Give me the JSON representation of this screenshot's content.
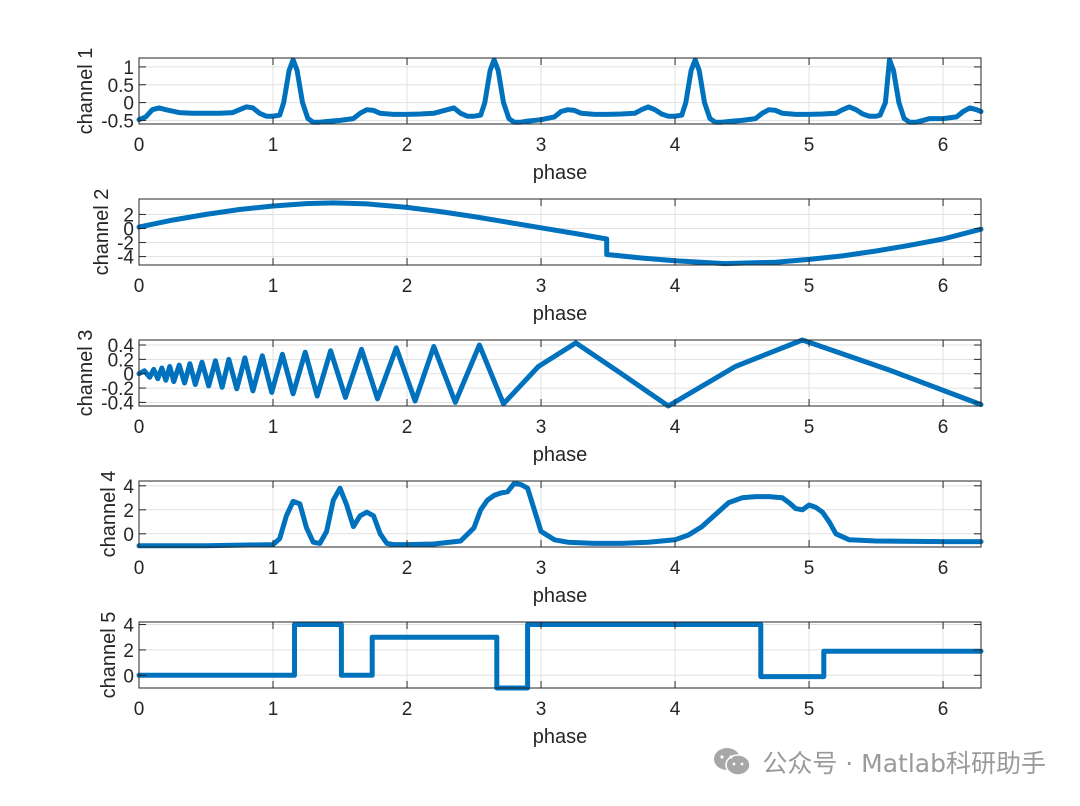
{
  "chart_data": [
    {
      "type": "line",
      "xlabel": "phase",
      "ylabel": "channel 1",
      "xlim": [
        0,
        6.283
      ],
      "ylim": [
        -0.6,
        1.25
      ],
      "xticks": [
        "0",
        "1",
        "2",
        "3",
        "4",
        "5",
        "6"
      ],
      "yticks": [
        {
          "value": 1,
          "label": "1"
        },
        {
          "value": 0.5,
          "label": "0.5"
        },
        {
          "value": 0,
          "label": "0"
        },
        {
          "value": -0.5,
          "label": "-0.5"
        }
      ],
      "grid": true,
      "color": "#0072BD",
      "series": [
        {
          "x": [
            0,
            0.05,
            0.1,
            0.15,
            0.2,
            0.3,
            0.4,
            0.5,
            0.6,
            0.7,
            0.75,
            0.8,
            0.85,
            0.9,
            0.95,
            1.0,
            1.05,
            1.08,
            1.12,
            1.15,
            1.18,
            1.22,
            1.26,
            1.3,
            1.35,
            1.4,
            1.5,
            1.6,
            1.65,
            1.7,
            1.75,
            1.8,
            1.9,
            2.0,
            2.1,
            2.2,
            2.3,
            2.35,
            2.4,
            2.45,
            2.5,
            2.55,
            2.58,
            2.62,
            2.65,
            2.68,
            2.72,
            2.76,
            2.8,
            2.85,
            2.9,
            3.0,
            3.1,
            3.15,
            3.2,
            3.25,
            3.3,
            3.4,
            3.5,
            3.6,
            3.7,
            3.75,
            3.8,
            3.85,
            3.9,
            3.95,
            4.0,
            4.05,
            4.08,
            4.12,
            4.15,
            4.18,
            4.22,
            4.26,
            4.3,
            4.35,
            4.4,
            4.5,
            4.6,
            4.65,
            4.7,
            4.75,
            4.8,
            4.9,
            5.0,
            5.1,
            5.2,
            5.25,
            5.3,
            5.35,
            5.4,
            5.45,
            5.5,
            5.53,
            5.57,
            5.6,
            5.63,
            5.67,
            5.71,
            5.75,
            5.8,
            5.85,
            5.9,
            6.0,
            6.1,
            6.15,
            6.2,
            6.25,
            6.283
          ],
          "y": [
            -0.48,
            -0.4,
            -0.2,
            -0.15,
            -0.2,
            -0.28,
            -0.3,
            -0.3,
            -0.3,
            -0.28,
            -0.2,
            -0.12,
            -0.15,
            -0.3,
            -0.38,
            -0.38,
            -0.35,
            0.0,
            0.9,
            1.2,
            0.9,
            0.0,
            -0.45,
            -0.55,
            -0.55,
            -0.53,
            -0.5,
            -0.45,
            -0.3,
            -0.2,
            -0.22,
            -0.3,
            -0.33,
            -0.33,
            -0.32,
            -0.3,
            -0.2,
            -0.15,
            -0.3,
            -0.38,
            -0.38,
            -0.35,
            0.0,
            0.9,
            1.2,
            0.9,
            0.0,
            -0.45,
            -0.55,
            -0.55,
            -0.52,
            -0.48,
            -0.4,
            -0.25,
            -0.2,
            -0.22,
            -0.3,
            -0.33,
            -0.33,
            -0.32,
            -0.3,
            -0.2,
            -0.12,
            -0.2,
            -0.32,
            -0.38,
            -0.38,
            -0.35,
            0.0,
            0.9,
            1.2,
            0.9,
            0.0,
            -0.45,
            -0.55,
            -0.55,
            -0.53,
            -0.5,
            -0.45,
            -0.3,
            -0.2,
            -0.22,
            -0.3,
            -0.33,
            -0.33,
            -0.32,
            -0.3,
            -0.2,
            -0.12,
            -0.2,
            -0.32,
            -0.38,
            -0.38,
            -0.35,
            0.0,
            1.2,
            0.9,
            0.0,
            -0.45,
            -0.55,
            -0.55,
            -0.5,
            -0.45,
            -0.45,
            -0.4,
            -0.25,
            -0.15,
            -0.2,
            -0.25
          ]
        }
      ]
    },
    {
      "type": "line",
      "xlabel": "phase",
      "ylabel": "channel 2",
      "xlim": [
        0,
        6.283
      ],
      "ylim": [
        -5.2,
        4.2
      ],
      "xticks": [
        "0",
        "1",
        "2",
        "3",
        "4",
        "5",
        "6"
      ],
      "yticks": [
        {
          "value": 2,
          "label": "2"
        },
        {
          "value": 0,
          "label": "0"
        },
        {
          "value": -2,
          "label": "-2"
        },
        {
          "value": -4,
          "label": "-4"
        }
      ],
      "grid": true,
      "color": "#0072BD",
      "series": [
        {
          "x": [
            0,
            0.25,
            0.5,
            0.75,
            1.0,
            1.25,
            1.45,
            1.7,
            2.0,
            2.25,
            2.5,
            2.75,
            3.0,
            3.25,
            3.49,
            3.49,
            3.75,
            4.0,
            4.37,
            4.75,
            5.0,
            5.25,
            5.5,
            5.75,
            6.0,
            6.283
          ],
          "y": [
            0.2,
            1.2,
            2.0,
            2.7,
            3.2,
            3.55,
            3.65,
            3.5,
            3.0,
            2.4,
            1.7,
            0.9,
            0.1,
            -0.7,
            -1.5,
            -3.7,
            -4.2,
            -4.6,
            -5.0,
            -4.8,
            -4.4,
            -3.9,
            -3.2,
            -2.4,
            -1.5,
            -0.1
          ]
        }
      ]
    },
    {
      "type": "line",
      "xlabel": "phase",
      "ylabel": "channel 3",
      "xlim": [
        0,
        6.283
      ],
      "ylim": [
        -0.45,
        0.47
      ],
      "xticks": [
        "0",
        "1",
        "2",
        "3",
        "4",
        "5",
        "6"
      ],
      "yticks": [
        {
          "value": 0.4,
          "label": "0.4"
        },
        {
          "value": 0.2,
          "label": "0.2"
        },
        {
          "value": 0,
          "label": "0"
        },
        {
          "value": -0.2,
          "label": "-0.2"
        },
        {
          "value": -0.4,
          "label": "-0.4"
        }
      ],
      "grid": true,
      "color": "#0072BD",
      "series": [
        {
          "x": [
            0,
            0.04,
            0.08,
            0.11,
            0.14,
            0.17,
            0.2,
            0.23,
            0.26,
            0.3,
            0.34,
            0.38,
            0.42,
            0.47,
            0.52,
            0.57,
            0.62,
            0.67,
            0.73,
            0.79,
            0.85,
            0.92,
            0.99,
            1.07,
            1.15,
            1.24,
            1.33,
            1.43,
            1.54,
            1.66,
            1.78,
            1.92,
            2.06,
            2.2,
            2.36,
            2.54,
            2.72,
            2.98,
            3.26,
            3.6,
            3.95,
            4.45,
            4.95,
            5.6,
            6.283
          ],
          "y": [
            0.0,
            0.04,
            -0.05,
            0.06,
            -0.07,
            0.08,
            -0.09,
            0.1,
            -0.11,
            0.12,
            -0.13,
            0.14,
            -0.15,
            0.16,
            -0.17,
            0.18,
            -0.19,
            0.2,
            -0.21,
            0.22,
            -0.24,
            0.25,
            -0.26,
            0.27,
            -0.28,
            0.3,
            -0.31,
            0.32,
            -0.33,
            0.34,
            -0.35,
            0.36,
            -0.38,
            0.38,
            -0.4,
            0.4,
            -0.42,
            0.1,
            0.43,
            0.0,
            -0.45,
            0.1,
            0.47,
            0.05,
            -0.43
          ]
        }
      ]
    },
    {
      "type": "line",
      "xlabel": "phase",
      "ylabel": "channel 4",
      "xlim": [
        0,
        6.283
      ],
      "ylim": [
        -1.1,
        4.4
      ],
      "xticks": [
        "0",
        "1",
        "2",
        "3",
        "4",
        "5",
        "6"
      ],
      "yticks": [
        {
          "value": 4,
          "label": "4"
        },
        {
          "value": 2,
          "label": "2"
        },
        {
          "value": 0,
          "label": "0"
        }
      ],
      "grid": true,
      "color": "#0072BD",
      "series": [
        {
          "x": [
            0,
            0.5,
            1.0,
            1.05,
            1.1,
            1.15,
            1.2,
            1.25,
            1.3,
            1.35,
            1.4,
            1.45,
            1.5,
            1.55,
            1.6,
            1.65,
            1.7,
            1.75,
            1.8,
            1.85,
            1.9,
            2.0,
            2.2,
            2.4,
            2.5,
            2.55,
            2.6,
            2.65,
            2.7,
            2.75,
            2.8,
            2.85,
            2.9,
            2.95,
            3.0,
            3.1,
            3.2,
            3.4,
            3.6,
            3.8,
            4.0,
            4.1,
            4.2,
            4.3,
            4.4,
            4.5,
            4.6,
            4.7,
            4.8,
            4.85,
            4.9,
            4.95,
            5.0,
            5.05,
            5.1,
            5.15,
            5.2,
            5.3,
            5.5,
            6.0,
            6.283
          ],
          "y": [
            -1.0,
            -1.0,
            -0.9,
            -0.4,
            1.5,
            2.7,
            2.5,
            0.5,
            -0.7,
            -0.8,
            0.2,
            2.8,
            3.8,
            2.4,
            0.6,
            1.5,
            1.8,
            1.5,
            0.0,
            -0.8,
            -0.9,
            -0.9,
            -0.85,
            -0.6,
            0.5,
            2.0,
            2.8,
            3.2,
            3.4,
            3.5,
            4.2,
            4.1,
            3.8,
            2.0,
            0.2,
            -0.5,
            -0.7,
            -0.8,
            -0.8,
            -0.7,
            -0.5,
            -0.1,
            0.6,
            1.6,
            2.6,
            3.0,
            3.1,
            3.1,
            3.0,
            2.6,
            2.1,
            2.0,
            2.4,
            2.2,
            1.8,
            1.0,
            0.0,
            -0.5,
            -0.6,
            -0.65,
            -0.65
          ]
        }
      ]
    },
    {
      "type": "line",
      "xlabel": "phase",
      "ylabel": "channel 5",
      "xlim": [
        0,
        6.283
      ],
      "ylim": [
        -1.0,
        4.2
      ],
      "xticks": [
        "0",
        "1",
        "2",
        "3",
        "4",
        "5",
        "6"
      ],
      "yticks": [
        {
          "value": 4,
          "label": "4"
        },
        {
          "value": 2,
          "label": "2"
        },
        {
          "value": 0,
          "label": "0"
        }
      ],
      "grid": true,
      "color": "#0072BD",
      "series": [
        {
          "x": [
            0,
            1.16,
            1.16,
            1.51,
            1.51,
            1.74,
            1.74,
            2.67,
            2.67,
            2.9,
            2.9,
            4.64,
            4.64,
            5.11,
            5.11,
            6.283
          ],
          "y": [
            0,
            0,
            4,
            4,
            0,
            0,
            3,
            3,
            -1,
            -1,
            4,
            4,
            -0.1,
            -0.1,
            1.9,
            1.9
          ]
        }
      ]
    }
  ],
  "watermark": {
    "text": "公众号 · Matlab科研助手",
    "icon": "wechat-icon"
  }
}
